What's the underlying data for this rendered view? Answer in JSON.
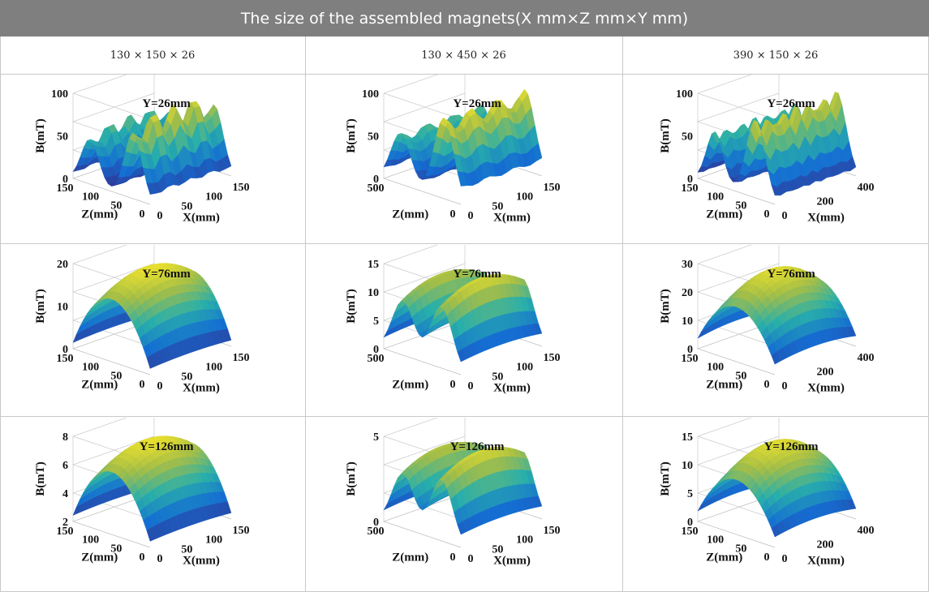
{
  "table": {
    "title": "The size of the assembled magnets(X mm×Z mm×Y mm)",
    "columns": [
      "130 × 150 × 26",
      "130 × 450 × 26",
      "390 × 150 × 26"
    ]
  },
  "colors": {
    "header_bg": "#7f7f7f",
    "grid_line": "#c8c8c8",
    "surface_low": "#3b2f8f",
    "surface_mid": "#2ab0a8",
    "surface_high": "#f6e53a"
  },
  "plots": [
    {
      "id": "p11",
      "title": "Y=26mm",
      "zlabel": "B(mT)",
      "zticks": [
        "100",
        "50",
        "0"
      ],
      "zlabels_y": [
        "0",
        "50",
        "100",
        "150"
      ],
      "xlabel": "X(mm)",
      "xticks": [
        "0",
        "50",
        "100",
        "150"
      ],
      "ylabel": "Z(mm)",
      "type": "two-ridges"
    },
    {
      "id": "p12",
      "title": "Y=26mm",
      "zlabel": "B(mT)",
      "zticks": [
        "100",
        "50",
        "0"
      ],
      "zlabels_y": [
        "0",
        "500"
      ],
      "xlabel": "X(mm)",
      "xticks": [
        "0",
        "50",
        "100",
        "150"
      ],
      "ylabel": "Z(mm)",
      "type": "two-ridges-deep"
    },
    {
      "id": "p13",
      "title": "Y=26mm",
      "zlabel": "B(mT)",
      "zticks": [
        "100",
        "50",
        "0"
      ],
      "zlabels_y": [
        "0",
        "50",
        "100",
        "150"
      ],
      "xlabel": "X(mm)",
      "xticks": [
        "0",
        "200",
        "400"
      ],
      "ylabel": "Z(mm)",
      "type": "two-ridges-wide"
    },
    {
      "id": "p21",
      "title": "Y=76mm",
      "zlabel": "B(mT)",
      "zticks": [
        "20",
        "10",
        "0"
      ],
      "zlabels_y": [
        "0",
        "50",
        "100",
        "150"
      ],
      "xlabel": "X(mm)",
      "xticks": [
        "0",
        "50",
        "100",
        "150"
      ],
      "ylabel": "Z(mm)",
      "type": "dome"
    },
    {
      "id": "p22",
      "title": "Y=76mm",
      "zlabel": "B(mT)",
      "zticks": [
        "15",
        "10",
        "5",
        "0"
      ],
      "zlabels_y": [
        "0",
        "500"
      ],
      "xlabel": "X(mm)",
      "xticks": [
        "0",
        "50",
        "100",
        "150"
      ],
      "ylabel": "Z(mm)",
      "type": "two-ridges-soft"
    },
    {
      "id": "p23",
      "title": "Y=76mm",
      "zlabel": "B(mT)",
      "zticks": [
        "30",
        "20",
        "10",
        "0"
      ],
      "zlabels_y": [
        "0",
        "50",
        "100",
        "150"
      ],
      "xlabel": "X(mm)",
      "xticks": [
        "0",
        "200",
        "400"
      ],
      "ylabel": "Z(mm)",
      "type": "dome-wide"
    },
    {
      "id": "p31",
      "title": "Y=126mm",
      "zlabel": "B(mT)",
      "zticks": [
        "8",
        "6",
        "4",
        "2"
      ],
      "zlabels_y": [
        "0",
        "50",
        "100",
        "150"
      ],
      "xlabel": "X(mm)",
      "xticks": [
        "0",
        "50",
        "100",
        "150"
      ],
      "ylabel": "Z(mm)",
      "type": "dome"
    },
    {
      "id": "p32",
      "title": "Y=126mm",
      "zlabel": "B(mT)",
      "zticks": [
        "5",
        "0"
      ],
      "zlabels_y": [
        "0",
        "500"
      ],
      "xlabel": "X(mm)",
      "xticks": [
        "0",
        "50",
        "100",
        "150"
      ],
      "ylabel": "Z(mm)",
      "type": "two-ridges-soft"
    },
    {
      "id": "p33",
      "title": "Y=126mm",
      "zlabel": "B(mT)",
      "zticks": [
        "15",
        "10",
        "5",
        "0"
      ],
      "zlabels_y": [
        "0",
        "50",
        "100",
        "150"
      ],
      "xlabel": "X(mm)",
      "xticks": [
        "0",
        "200",
        "400"
      ],
      "ylabel": "Z(mm)",
      "type": "dome-wide"
    }
  ]
}
